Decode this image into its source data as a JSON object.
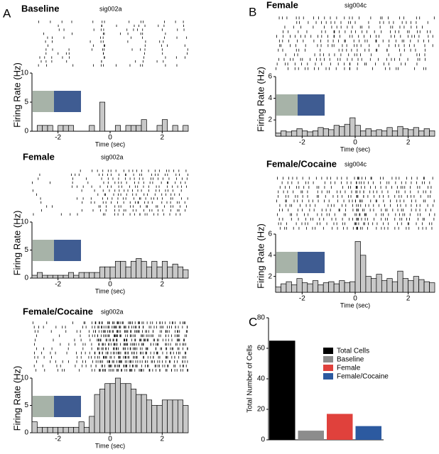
{
  "chart_data": [
    {
      "type": "histogram",
      "panel": "A",
      "title": "Baseline",
      "subtitle": "sig002a",
      "xlabel": "Time (sec)",
      "ylabel": "Firing Rate (Hz)",
      "color": "#c8c8c8",
      "bins": [
        -3.0,
        -2.8,
        -2.6,
        -2.4,
        -2.2,
        -2.0,
        -1.8,
        -1.6,
        -1.4,
        -1.2,
        -1.0,
        -0.8,
        -0.6,
        -0.4,
        -0.2,
        0.0,
        0.2,
        0.4,
        0.6,
        0.8,
        1.0,
        1.2,
        1.4,
        1.6,
        1.8,
        2.0,
        2.2,
        2.4,
        2.6,
        2.8,
        3.0
      ],
      "values": [
        0,
        1,
        1,
        1,
        0,
        1,
        1,
        1,
        0,
        0,
        0,
        1,
        0,
        5,
        0,
        0,
        1,
        0,
        1,
        1,
        1,
        2,
        0,
        0,
        1,
        2,
        0,
        1,
        0,
        1
      ],
      "xlim": [
        -3,
        3
      ],
      "xticks": [
        -2,
        0,
        2
      ],
      "ylim": [
        0,
        10
      ],
      "yticks": [
        0,
        5,
        10
      ]
    },
    {
      "type": "histogram",
      "title": "Female",
      "subtitle": "sig002a",
      "xlabel": "Time (sec)",
      "ylabel": "Firing Rate (Hz)",
      "color": "#c8c8c8",
      "bins": [
        -3.0,
        -2.8,
        -2.6,
        -2.4,
        -2.2,
        -2.0,
        -1.8,
        -1.6,
        -1.4,
        -1.2,
        -1.0,
        -0.8,
        -0.6,
        -0.4,
        -0.2,
        0.0,
        0.2,
        0.4,
        0.6,
        0.8,
        1.0,
        1.2,
        1.4,
        1.6,
        1.8,
        2.0,
        2.2,
        2.4,
        2.6,
        2.8,
        3.0
      ],
      "values": [
        0.5,
        1,
        0.5,
        0.5,
        0.5,
        0.5,
        0.5,
        1,
        0.5,
        1,
        1,
        1,
        1,
        2,
        2,
        2,
        3,
        3,
        2,
        3,
        3.5,
        3,
        2,
        3,
        2,
        3,
        2,
        2.5,
        2,
        1.5
      ],
      "xlim": [
        -3,
        3
      ],
      "xticks": [
        -2,
        0,
        2
      ],
      "ylim": [
        0,
        10
      ],
      "yticks": [
        0,
        5,
        10
      ]
    },
    {
      "type": "histogram",
      "title": "Female/Cocaine",
      "subtitle": "sig002a",
      "xlabel": "Time (sec)",
      "ylabel": "Firing Rate (Hz)",
      "color": "#c8c8c8",
      "bins": [
        -3.0,
        -2.8,
        -2.6,
        -2.4,
        -2.2,
        -2.0,
        -1.8,
        -1.6,
        -1.4,
        -1.2,
        -1.0,
        -0.8,
        -0.6,
        -0.4,
        -0.2,
        0.0,
        0.2,
        0.4,
        0.6,
        0.8,
        1.0,
        1.2,
        1.4,
        1.6,
        1.8,
        2.0,
        2.2,
        2.4,
        2.6,
        2.8,
        3.0
      ],
      "values": [
        2,
        1,
        1,
        1,
        1,
        1,
        1,
        1,
        1,
        2,
        1,
        3,
        7,
        8,
        9,
        9,
        10,
        9,
        9,
        8,
        7,
        7,
        6,
        5,
        5,
        6,
        6,
        6,
        6,
        5
      ],
      "xlim": [
        -3,
        3
      ],
      "xticks": [
        -2,
        0,
        2
      ],
      "ylim": [
        0,
        10
      ],
      "yticks": [
        0,
        5,
        10
      ]
    },
    {
      "type": "histogram",
      "panel": "B",
      "title": "Female",
      "subtitle": "sig004c",
      "xlabel": "Time (sec)",
      "ylabel": "Firing Rate (Hz)",
      "color": "#c8c8c8",
      "bins": [
        -3.0,
        -2.8,
        -2.6,
        -2.4,
        -2.2,
        -2.0,
        -1.8,
        -1.6,
        -1.4,
        -1.2,
        -1.0,
        -0.8,
        -0.6,
        -0.4,
        -0.2,
        0.0,
        0.2,
        0.4,
        0.6,
        0.8,
        1.0,
        1.2,
        1.4,
        1.6,
        1.8,
        2.0,
        2.2,
        2.4,
        2.6,
        2.8,
        3.0
      ],
      "values": [
        0.8,
        1,
        0.9,
        1,
        1.2,
        1,
        0.9,
        1,
        1.3,
        1.2,
        1.1,
        1.5,
        1.4,
        1.6,
        2.2,
        1.5,
        1,
        1.2,
        1,
        1.1,
        1,
        1.3,
        1,
        1.4,
        1.2,
        1.1,
        1.3,
        1,
        1.2,
        1
      ],
      "xlim": [
        -3,
        3
      ],
      "xticks": [
        -2,
        0,
        2
      ],
      "ylim": [
        0.5,
        6
      ],
      "yticks": [
        2,
        4,
        6
      ]
    },
    {
      "type": "histogram",
      "title": "Female/Cocaine",
      "subtitle": "sig004c",
      "xlabel": "Time (sec)",
      "ylabel": "Firing Rate (Hz)",
      "color": "#c8c8c8",
      "bins": [
        -3.0,
        -2.8,
        -2.6,
        -2.4,
        -2.2,
        -2.0,
        -1.8,
        -1.6,
        -1.4,
        -1.2,
        -1.0,
        -0.8,
        -0.6,
        -0.4,
        -0.2,
        0.0,
        0.2,
        0.4,
        0.6,
        0.8,
        1.0,
        1.2,
        1.4,
        1.6,
        1.8,
        2.0,
        2.2,
        2.4,
        2.6,
        2.8,
        3.0
      ],
      "values": [
        1,
        1.3,
        1.5,
        1.2,
        1.8,
        1.4,
        1.3,
        1.6,
        1.2,
        1.4,
        1.5,
        1.3,
        1.6,
        1.4,
        1.5,
        5.3,
        4,
        2,
        1.8,
        2.2,
        1.6,
        1.8,
        1.5,
        2.5,
        1.8,
        1.6,
        2,
        1.7,
        1.5,
        1.4
      ],
      "xlim": [
        -3,
        3
      ],
      "xticks": [
        -2,
        0,
        2
      ],
      "ylim": [
        0.5,
        6
      ],
      "yticks": [
        2,
        4,
        6
      ]
    },
    {
      "type": "bar",
      "panel": "C",
      "ylabel": "Total Number of Cells",
      "categories": [
        "Total Cells",
        "Baseline",
        "Female",
        "Female/Cocaine"
      ],
      "values": [
        65,
        6,
        17,
        9
      ],
      "colors": [
        "#000000",
        "#8c8c8c",
        "#e0413c",
        "#2c5aa0"
      ],
      "ylim": [
        0,
        80
      ],
      "yticks": [
        0,
        20,
        40,
        60,
        80
      ]
    }
  ]
}
